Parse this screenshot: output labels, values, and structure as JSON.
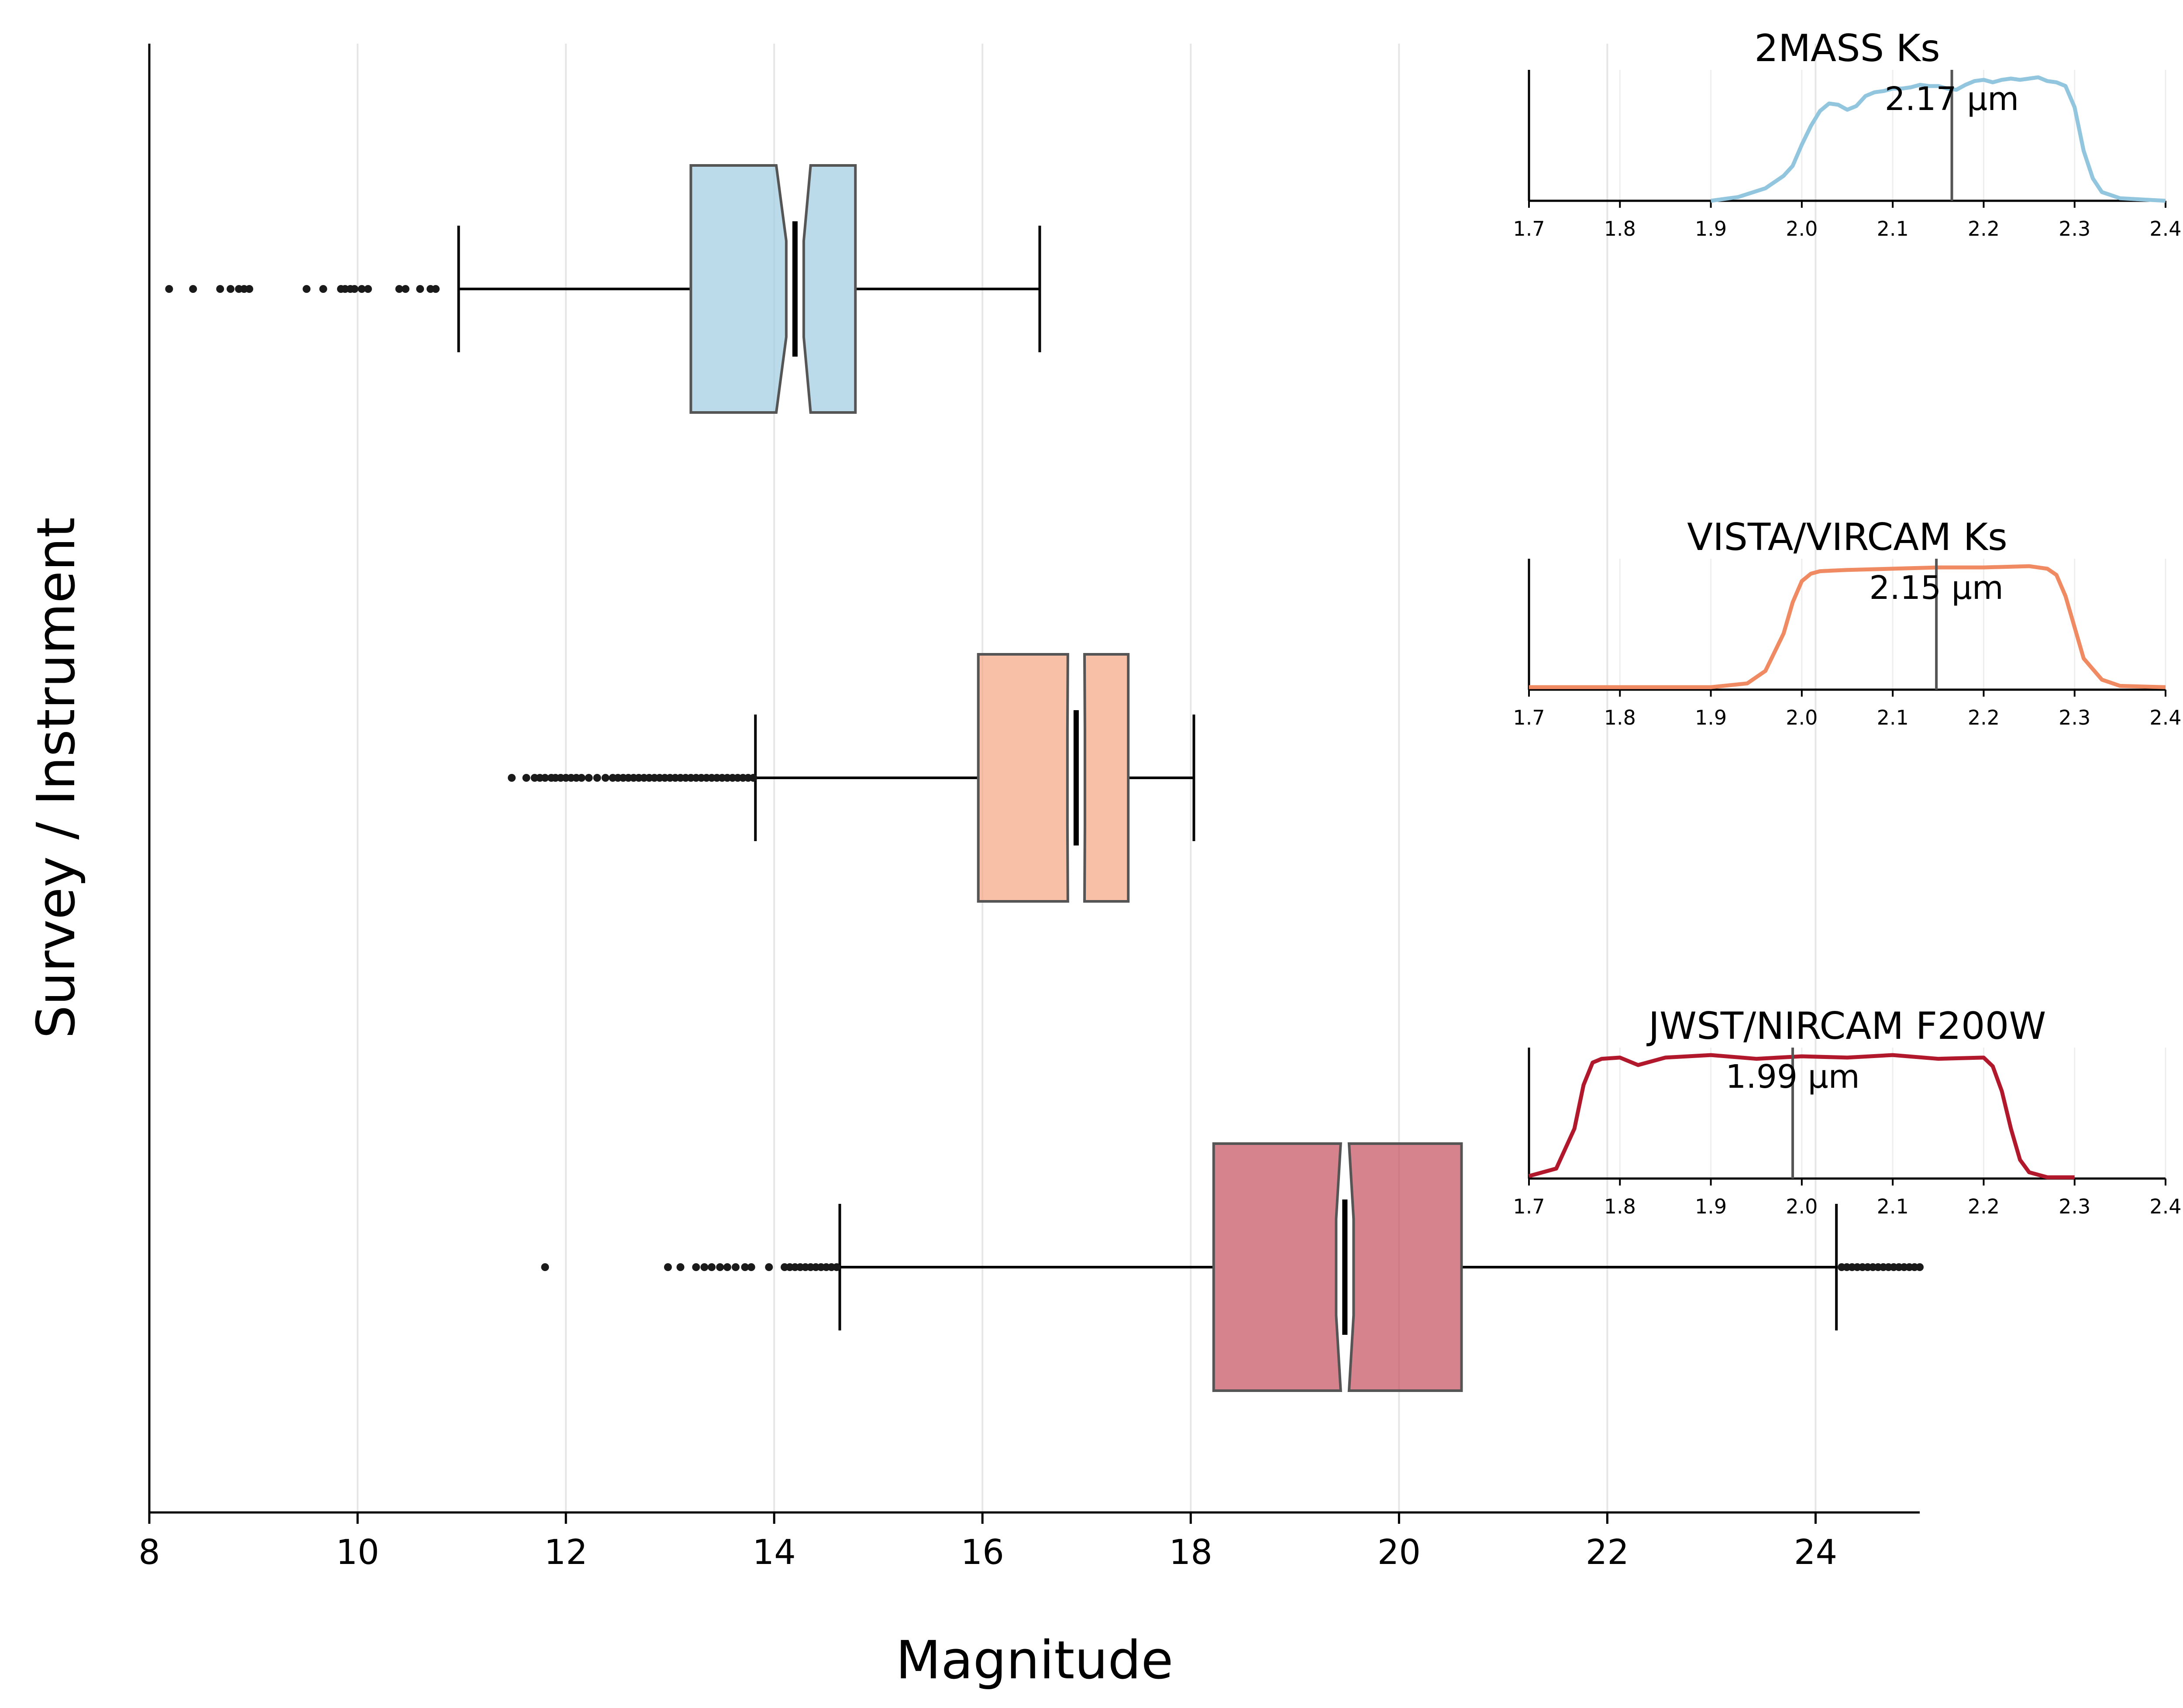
{
  "chart_data": {
    "type": "box",
    "orientation": "horizontal",
    "xlabel": "Magnitude",
    "ylabel": "Survey / Instrument",
    "xlim": [
      8,
      25
    ],
    "xticks": [
      "8",
      "10",
      "12",
      "14",
      "16",
      "18",
      "20",
      "22",
      "24"
    ],
    "grid": "vertical",
    "notched": true,
    "series": [
      {
        "name": "2MASS Ks",
        "color": "#9ecae1",
        "q1": 13.2,
        "median": 14.2,
        "q3": 14.78,
        "whisker_low": 10.97,
        "whisker_high": 16.55,
        "notch_low": 14.02,
        "notch_high": 14.35,
        "outliers": [
          8.19,
          8.42,
          8.68,
          8.78,
          8.86,
          8.91,
          8.96,
          9.51,
          9.67,
          9.84,
          9.88,
          9.93,
          9.97,
          10.04,
          10.1,
          10.4,
          10.46,
          10.6,
          10.7,
          10.75
        ]
      },
      {
        "name": "VISTA/VIRCAM Ks",
        "color": "#f4a582",
        "q1": 15.96,
        "median": 16.9,
        "q3": 17.4,
        "whisker_low": 13.82,
        "whisker_high": 18.03,
        "notch_low": 16.82,
        "notch_high": 16.98,
        "outliers": [
          11.48,
          11.62,
          11.7,
          11.75,
          11.8,
          11.86,
          11.9,
          11.95,
          12.0,
          12.05,
          12.1,
          12.15,
          12.22,
          12.3,
          12.38,
          12.45,
          12.5,
          12.55,
          12.6,
          12.65,
          12.7,
          12.75,
          12.8,
          12.85,
          12.9,
          12.95,
          13.0,
          13.05,
          13.1,
          13.15,
          13.2,
          13.25,
          13.3,
          13.35,
          13.4,
          13.45,
          13.5,
          13.55,
          13.6,
          13.65,
          13.7,
          13.75,
          13.8
        ]
      },
      {
        "name": "JWST/NIRCAM F200W",
        "color": "#c44e5e",
        "q1": 18.22,
        "median": 19.48,
        "q3": 20.6,
        "whisker_low": 14.63,
        "whisker_high": 24.2,
        "notch_low": 19.44,
        "notch_high": 19.52,
        "outliers": [
          11.8,
          12.98,
          13.1,
          13.25,
          13.33,
          13.4,
          13.48,
          13.55,
          13.63,
          13.72,
          13.78,
          13.95,
          14.1,
          14.15,
          14.2,
          14.25,
          14.3,
          14.35,
          14.4,
          14.45,
          14.5,
          14.55,
          14.6,
          24.25,
          24.3,
          24.35,
          24.4,
          24.45,
          24.5,
          24.55,
          24.6,
          24.65,
          24.7,
          24.75,
          24.8,
          24.85,
          24.9,
          24.95,
          25.0
        ]
      }
    ],
    "insets": [
      {
        "title": "2MASS Ks",
        "annotation": "2.17 µm",
        "center": 2.165,
        "color": "#92c5de",
        "xlim": [
          1.7,
          2.4
        ],
        "xticks": [
          "1.7",
          "1.8",
          "1.9",
          "2.0",
          "2.1",
          "2.2",
          "2.3",
          "2.4"
        ],
        "ylim": [
          0,
          1.05
        ],
        "x": [
          1.9,
          1.93,
          1.96,
          1.98,
          1.99,
          2.0,
          2.01,
          2.02,
          2.03,
          2.04,
          2.05,
          2.06,
          2.07,
          2.08,
          2.09,
          2.1,
          2.11,
          2.12,
          2.13,
          2.14,
          2.15,
          2.16,
          2.17,
          2.18,
          2.19,
          2.2,
          2.21,
          2.22,
          2.23,
          2.24,
          2.25,
          2.26,
          2.27,
          2.28,
          2.29,
          2.3,
          2.31,
          2.32,
          2.33,
          2.35,
          2.4
        ],
        "y": [
          0.0,
          0.03,
          0.1,
          0.2,
          0.28,
          0.45,
          0.6,
          0.72,
          0.78,
          0.77,
          0.73,
          0.76,
          0.84,
          0.87,
          0.88,
          0.9,
          0.9,
          0.91,
          0.93,
          0.92,
          0.92,
          0.9,
          0.89,
          0.93,
          0.96,
          0.97,
          0.95,
          0.97,
          0.98,
          0.97,
          0.98,
          0.99,
          0.96,
          0.95,
          0.92,
          0.75,
          0.4,
          0.18,
          0.07,
          0.02,
          0.0
        ]
      },
      {
        "title": "VISTA/VIRCAM Ks",
        "annotation": "2.15 µm",
        "center": 2.148,
        "color": "#ef8a62",
        "xlim": [
          1.7,
          2.4
        ],
        "xticks": [
          "1.7",
          "1.8",
          "1.9",
          "2.0",
          "2.1",
          "2.2",
          "2.3",
          "2.4"
        ],
        "ylim": [
          0,
          1.05
        ],
        "x": [
          1.7,
          1.9,
          1.94,
          1.96,
          1.98,
          1.99,
          2.0,
          2.01,
          2.02,
          2.05,
          2.1,
          2.15,
          2.2,
          2.25,
          2.27,
          2.28,
          2.29,
          2.3,
          2.31,
          2.33,
          2.35,
          2.4
        ],
        "y": [
          0.02,
          0.02,
          0.05,
          0.15,
          0.45,
          0.7,
          0.87,
          0.93,
          0.95,
          0.96,
          0.97,
          0.98,
          0.98,
          0.99,
          0.97,
          0.92,
          0.75,
          0.5,
          0.25,
          0.08,
          0.03,
          0.02
        ]
      },
      {
        "title": "JWST/NIRCAM F200W",
        "annotation": "1.99 µm",
        "center": 1.99,
        "color": "#b2182b",
        "xlim": [
          1.7,
          2.4
        ],
        "xticks": [
          "1.7",
          "1.8",
          "1.9",
          "2.0",
          "2.1",
          "2.2",
          "2.3",
          "2.4"
        ],
        "ylim": [
          0,
          1.05
        ],
        "x": [
          1.7,
          1.73,
          1.75,
          1.76,
          1.77,
          1.78,
          1.8,
          1.82,
          1.85,
          1.9,
          1.95,
          2.0,
          2.05,
          2.1,
          2.15,
          2.2,
          2.21,
          2.22,
          2.23,
          2.24,
          2.25,
          2.27,
          2.3
        ],
        "y": [
          0.02,
          0.08,
          0.4,
          0.75,
          0.93,
          0.96,
          0.97,
          0.91,
          0.97,
          0.99,
          0.96,
          0.98,
          0.97,
          0.99,
          0.96,
          0.97,
          0.9,
          0.7,
          0.4,
          0.15,
          0.05,
          0.01,
          0.01
        ]
      }
    ]
  }
}
